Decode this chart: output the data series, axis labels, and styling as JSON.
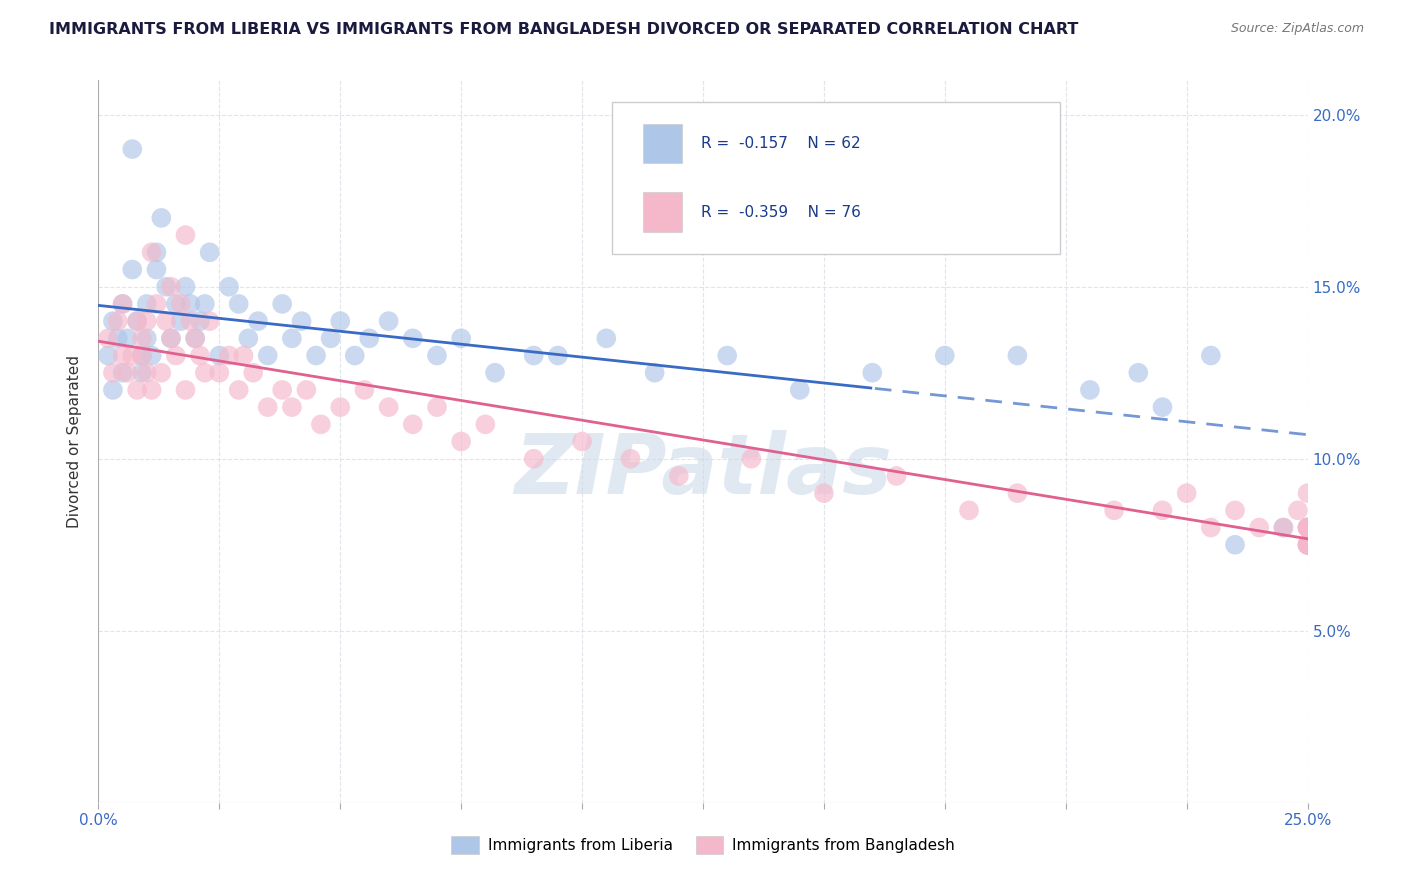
{
  "title": "IMMIGRANTS FROM LIBERIA VS IMMIGRANTS FROM BANGLADESH DIVORCED OR SEPARATED CORRELATION CHART",
  "source": "Source: ZipAtlas.com",
  "ylabel": "Divorced or Separated",
  "xlim": [
    0,
    0.25
  ],
  "ylim": [
    0,
    0.21
  ],
  "xtick_positions": [
    0.0,
    0.025,
    0.05,
    0.075,
    0.1,
    0.125,
    0.15,
    0.175,
    0.2,
    0.225,
    0.25
  ],
  "xtick_labels": [
    "0.0%",
    "",
    "",
    "",
    "",
    "",
    "",
    "",
    "",
    "",
    "25.0%"
  ],
  "ytick_positions": [
    0.0,
    0.05,
    0.1,
    0.15,
    0.2
  ],
  "ytick_labels_right": [
    "",
    "5.0%",
    "10.0%",
    "15.0%",
    "20.0%"
  ],
  "legend_line1": "R =  -0.157    N = 62",
  "legend_line2": "R =  -0.359    N = 76",
  "series1_label": "Immigrants from Liberia",
  "series2_label": "Immigrants from Bangladesh",
  "series1_color": "#aec6e8",
  "series2_color": "#f5b8cb",
  "series1_line_color": "#3a6bc4",
  "series2_line_color": "#e06090",
  "background_color": "#ffffff",
  "grid_color": "#d8dfe8",
  "watermark": "ZIPatlas",
  "liberia_x": [
    0.002,
    0.003,
    0.003,
    0.004,
    0.005,
    0.005,
    0.006,
    0.007,
    0.007,
    0.008,
    0.009,
    0.009,
    0.01,
    0.01,
    0.011,
    0.012,
    0.012,
    0.013,
    0.014,
    0.015,
    0.016,
    0.017,
    0.018,
    0.019,
    0.02,
    0.021,
    0.022,
    0.023,
    0.025,
    0.027,
    0.029,
    0.031,
    0.033,
    0.035,
    0.038,
    0.04,
    0.042,
    0.045,
    0.048,
    0.05,
    0.053,
    0.056,
    0.06,
    0.065,
    0.07,
    0.075,
    0.082,
    0.09,
    0.095,
    0.105,
    0.115,
    0.13,
    0.145,
    0.16,
    0.175,
    0.19,
    0.205,
    0.215,
    0.22,
    0.23,
    0.235,
    0.245
  ],
  "liberia_y": [
    0.13,
    0.14,
    0.12,
    0.135,
    0.125,
    0.145,
    0.135,
    0.155,
    0.19,
    0.14,
    0.13,
    0.125,
    0.135,
    0.145,
    0.13,
    0.16,
    0.155,
    0.17,
    0.15,
    0.135,
    0.145,
    0.14,
    0.15,
    0.145,
    0.135,
    0.14,
    0.145,
    0.16,
    0.13,
    0.15,
    0.145,
    0.135,
    0.14,
    0.13,
    0.145,
    0.135,
    0.14,
    0.13,
    0.135,
    0.14,
    0.13,
    0.135,
    0.14,
    0.135,
    0.13,
    0.135,
    0.125,
    0.13,
    0.13,
    0.135,
    0.125,
    0.13,
    0.12,
    0.125,
    0.13,
    0.13,
    0.12,
    0.125,
    0.115,
    0.13,
    0.075,
    0.08
  ],
  "bangladesh_x": [
    0.002,
    0.003,
    0.004,
    0.005,
    0.005,
    0.006,
    0.007,
    0.008,
    0.008,
    0.009,
    0.009,
    0.01,
    0.01,
    0.011,
    0.011,
    0.012,
    0.013,
    0.014,
    0.015,
    0.015,
    0.016,
    0.017,
    0.018,
    0.018,
    0.019,
    0.02,
    0.021,
    0.022,
    0.023,
    0.025,
    0.027,
    0.029,
    0.03,
    0.032,
    0.035,
    0.038,
    0.04,
    0.043,
    0.046,
    0.05,
    0.055,
    0.06,
    0.065,
    0.07,
    0.075,
    0.08,
    0.09,
    0.1,
    0.11,
    0.12,
    0.135,
    0.15,
    0.165,
    0.18,
    0.19,
    0.21,
    0.22,
    0.225,
    0.23,
    0.235,
    0.24,
    0.245,
    0.248,
    0.25,
    0.25,
    0.25,
    0.25,
    0.25,
    0.25,
    0.25,
    0.25,
    0.25,
    0.25,
    0.25,
    0.25,
    0.25
  ],
  "bangladesh_y": [
    0.135,
    0.125,
    0.14,
    0.13,
    0.145,
    0.125,
    0.13,
    0.12,
    0.14,
    0.135,
    0.13,
    0.125,
    0.14,
    0.16,
    0.12,
    0.145,
    0.125,
    0.14,
    0.15,
    0.135,
    0.13,
    0.145,
    0.165,
    0.12,
    0.14,
    0.135,
    0.13,
    0.125,
    0.14,
    0.125,
    0.13,
    0.12,
    0.13,
    0.125,
    0.115,
    0.12,
    0.115,
    0.12,
    0.11,
    0.115,
    0.12,
    0.115,
    0.11,
    0.115,
    0.105,
    0.11,
    0.1,
    0.105,
    0.1,
    0.095,
    0.1,
    0.09,
    0.095,
    0.085,
    0.09,
    0.085,
    0.085,
    0.09,
    0.08,
    0.085,
    0.08,
    0.08,
    0.085,
    0.075,
    0.09,
    0.08,
    0.075,
    0.075,
    0.08,
    0.08,
    0.075,
    0.08,
    0.075,
    0.08,
    0.08,
    0.075
  ]
}
